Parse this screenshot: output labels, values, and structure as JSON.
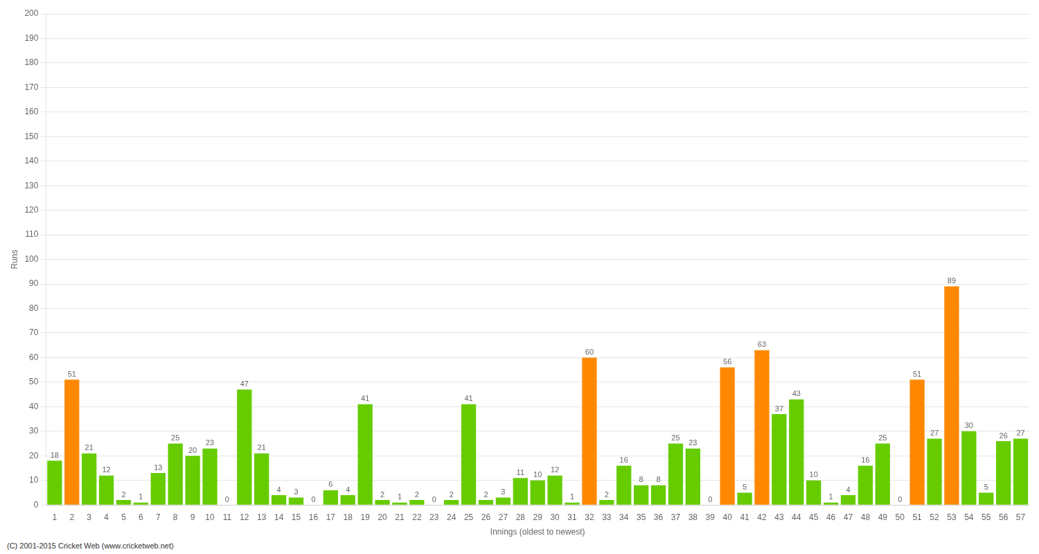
{
  "chart_data": {
    "type": "bar",
    "xlabel": "Innings (oldest to newest)",
    "ylabel": "Runs",
    "annotations": [
      "(C) 2001-2015 Cricket Web (www.cricketweb.net)"
    ],
    "categories": [
      "1",
      "2",
      "3",
      "4",
      "5",
      "6",
      "7",
      "8",
      "9",
      "10",
      "11",
      "12",
      "13",
      "14",
      "15",
      "16",
      "17",
      "18",
      "19",
      "20",
      "21",
      "22",
      "23",
      "24",
      "25",
      "26",
      "27",
      "28",
      "29",
      "30",
      "31",
      "32",
      "33",
      "34",
      "35",
      "36",
      "37",
      "38",
      "39",
      "40",
      "41",
      "42",
      "43",
      "44",
      "45",
      "46",
      "47",
      "48",
      "49",
      "50",
      "51",
      "52",
      "53",
      "54",
      "55",
      "56",
      "57"
    ],
    "values": [
      18,
      51,
      21,
      12,
      2,
      1,
      13,
      25,
      20,
      23,
      0,
      47,
      21,
      4,
      3,
      0,
      6,
      4,
      41,
      2,
      1,
      2,
      0,
      2,
      41,
      2,
      3,
      11,
      10,
      12,
      1,
      60,
      2,
      16,
      8,
      8,
      25,
      23,
      0,
      56,
      5,
      63,
      37,
      43,
      10,
      1,
      4,
      16,
      25,
      0,
      51,
      27,
      89,
      30,
      5,
      26,
      27
    ],
    "colors": [
      "#66cc00",
      "#ff8800",
      "#66cc00",
      "#66cc00",
      "#66cc00",
      "#66cc00",
      "#66cc00",
      "#66cc00",
      "#66cc00",
      "#66cc00",
      "#66cc00",
      "#66cc00",
      "#66cc00",
      "#66cc00",
      "#66cc00",
      "#66cc00",
      "#66cc00",
      "#66cc00",
      "#66cc00",
      "#66cc00",
      "#66cc00",
      "#66cc00",
      "#66cc00",
      "#66cc00",
      "#66cc00",
      "#66cc00",
      "#66cc00",
      "#66cc00",
      "#66cc00",
      "#66cc00",
      "#66cc00",
      "#ff8800",
      "#66cc00",
      "#66cc00",
      "#66cc00",
      "#66cc00",
      "#66cc00",
      "#66cc00",
      "#66cc00",
      "#ff8800",
      "#66cc00",
      "#ff8800",
      "#66cc00",
      "#66cc00",
      "#66cc00",
      "#66cc00",
      "#66cc00",
      "#66cc00",
      "#66cc00",
      "#66cc00",
      "#ff8800",
      "#66cc00",
      "#ff8800",
      "#66cc00",
      "#66cc00",
      "#66cc00",
      "#66cc00"
    ],
    "ylim": [
      0,
      200
    ],
    "yticks": [
      0,
      10,
      20,
      30,
      40,
      50,
      60,
      70,
      80,
      90,
      100,
      110,
      120,
      130,
      140,
      150,
      160,
      170,
      180,
      190,
      200
    ],
    "grid": true,
    "data_labels": true
  }
}
